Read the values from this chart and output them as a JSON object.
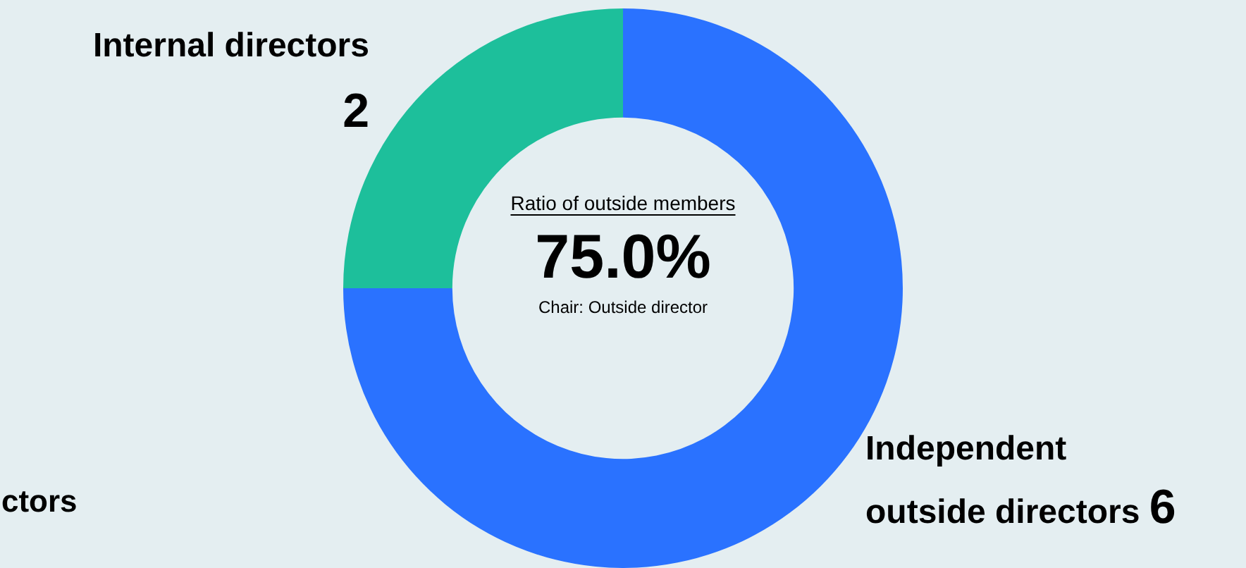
{
  "chart_data": {
    "type": "donut",
    "title": "Ratio of outside members",
    "categories": [
      "Internal directors",
      "Independent outside directors"
    ],
    "values": [
      2,
      6
    ],
    "colors": [
      "#1dbf9b",
      "#2a72ff"
    ],
    "data_labels": true,
    "legend": false,
    "annotations": [
      "75.0%",
      "Chair: Outside director",
      "ctors"
    ]
  }
}
